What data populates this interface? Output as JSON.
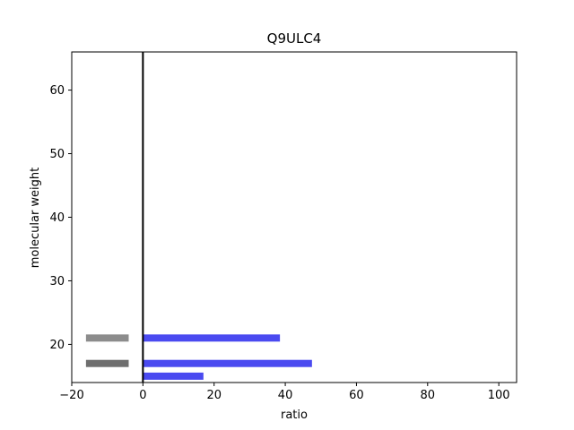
{
  "chart_data": {
    "type": "bar",
    "orientation": "horizontal",
    "title": "Q9ULC4",
    "xlabel": "ratio",
    "ylabel": "molecular weight",
    "xlim": [
      -20,
      105
    ],
    "ylim": [
      14,
      66
    ],
    "x_ticks": [
      -20,
      0,
      20,
      40,
      60,
      80,
      100
    ],
    "y_ticks": [
      20,
      30,
      40,
      50,
      60
    ],
    "x_tick_labels": [
      "−20",
      "0",
      "20",
      "40",
      "60",
      "80",
      100
    ],
    "y_tick_labels": [
      "20",
      "30",
      "40",
      "50",
      "60"
    ],
    "grid": false,
    "reference_line_x": 0,
    "series": [
      {
        "color": "#4a4af0",
        "bars": [
          {
            "y": 21,
            "x_start": 0,
            "x_end": 38.5
          },
          {
            "y": 17,
            "x_start": 0,
            "x_end": 47.5
          },
          {
            "y": 15,
            "x_start": 0,
            "x_end": 17
          }
        ]
      },
      {
        "color": "#8c8c8c",
        "bars": [
          {
            "y": 21,
            "x_start": -16,
            "x_end": -4
          }
        ]
      },
      {
        "color": "#6e6e6e",
        "bars": [
          {
            "y": 17,
            "x_start": -16,
            "x_end": -4
          }
        ]
      }
    ]
  }
}
